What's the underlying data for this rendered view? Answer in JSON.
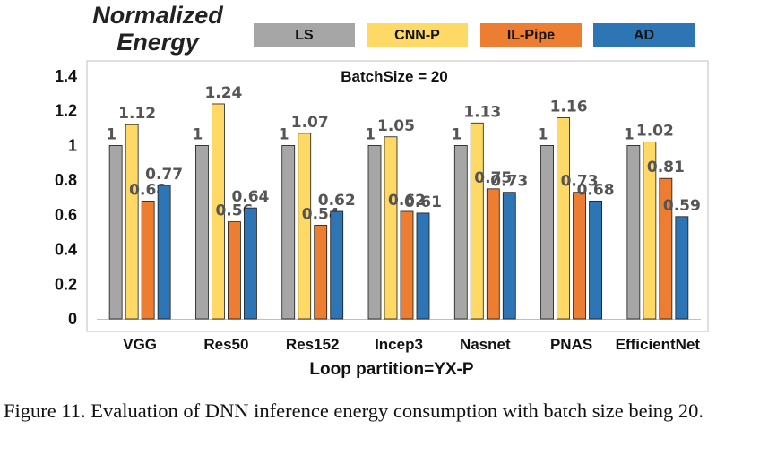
{
  "chart_data": {
    "type": "bar",
    "title": "BatchSize = 20",
    "ylabel": "Normalized Energy",
    "xlabel": "Loop partition=YX-P",
    "ylim": [
      0,
      1.4
    ],
    "yticks": [
      "0",
      "0.2",
      "0.4",
      "0.6",
      "0.8",
      "1",
      "1.2",
      "1.4"
    ],
    "categories": [
      "VGG",
      "Res50",
      "Res152",
      "Incep3",
      "Nasnet",
      "PNAS",
      "EfficientNet"
    ],
    "series": [
      {
        "name": "LS",
        "color": "#a6a6a6",
        "values": [
          1,
          1,
          1,
          1,
          1,
          1,
          1
        ],
        "labels": [
          "1",
          "1",
          "1",
          "1",
          "1",
          "1",
          "1"
        ]
      },
      {
        "name": "CNN-P",
        "color": "#ffd966",
        "values": [
          1.12,
          1.24,
          1.07,
          1.05,
          1.13,
          1.16,
          1.02
        ],
        "labels": [
          "1.12",
          "1.24",
          "1.07",
          "1.05",
          "1.13",
          "1.16",
          "1.02"
        ]
      },
      {
        "name": "IL-Pipe",
        "color": "#ed7d31",
        "values": [
          0.68,
          0.56,
          0.54,
          0.62,
          0.75,
          0.73,
          0.81
        ],
        "labels": [
          "0.68",
          "0.56",
          "0.54",
          "0.62",
          "0.75",
          "0.73",
          "0.81"
        ]
      },
      {
        "name": "AD",
        "color": "#2e75b6",
        "values": [
          0.77,
          0.64,
          0.62,
          0.61,
          0.73,
          0.68,
          0.59
        ],
        "labels": [
          "0.77",
          "0.64",
          "0.62",
          "0.61",
          "0.73",
          "0.68",
          "0.59"
        ]
      }
    ],
    "grid": false,
    "legend_position": "top"
  },
  "caption": "Figure 11.   Evaluation of DNN inference energy consumption with batch size being 20."
}
